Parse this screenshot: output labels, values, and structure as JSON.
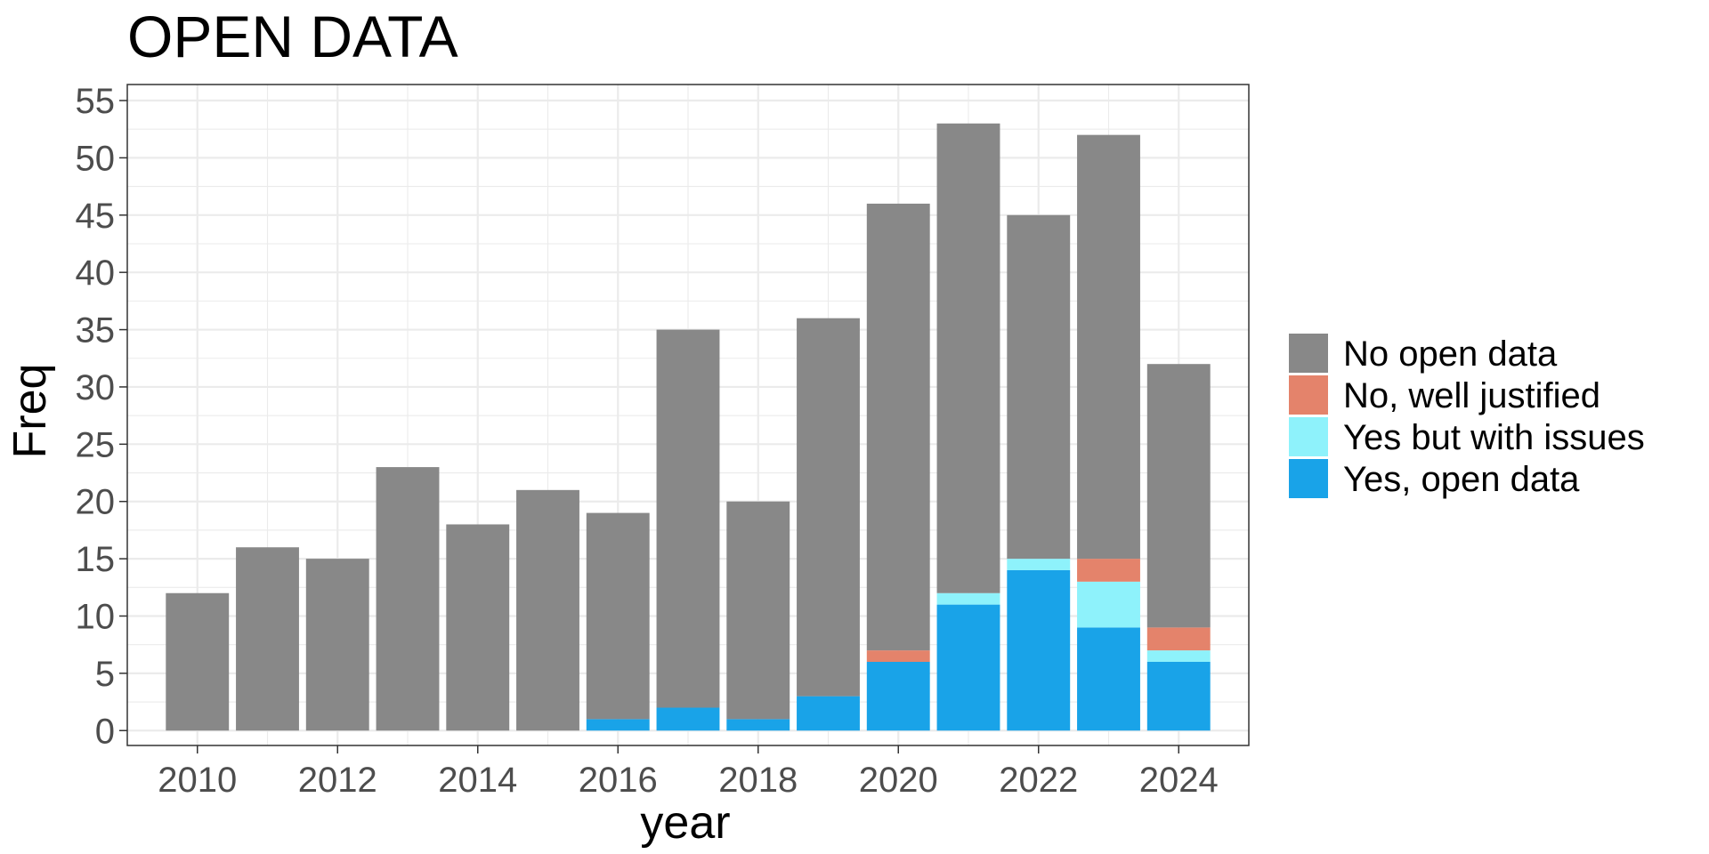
{
  "chart_data": {
    "type": "bar",
    "stacked": true,
    "title": "OPEN DATA",
    "xlabel": "year",
    "ylabel": "Freq",
    "x": [
      2010,
      2011,
      2012,
      2013,
      2014,
      2015,
      2016,
      2017,
      2018,
      2019,
      2020,
      2021,
      2022,
      2023,
      2024
    ],
    "xticks": [
      "2010",
      "2012",
      "2014",
      "2016",
      "2018",
      "2020",
      "2022",
      "2024"
    ],
    "yticks": [
      "0",
      "5",
      "10",
      "15",
      "20",
      "25",
      "30",
      "35",
      "40",
      "45",
      "50",
      "55"
    ],
    "ylim": [
      0,
      55
    ],
    "xlim": [
      2009,
      2025
    ],
    "grid": true,
    "legend_position": "right",
    "series": [
      {
        "name": "Yes, open data",
        "color": "#19A3E8",
        "values": [
          0,
          0,
          0,
          0,
          0,
          0,
          1,
          2,
          1,
          3,
          6,
          11,
          14,
          9,
          6
        ]
      },
      {
        "name": "Yes but with issues",
        "color": "#8EF2FB",
        "values": [
          0,
          0,
          0,
          0,
          0,
          0,
          0,
          0,
          0,
          0,
          0,
          1,
          1,
          4,
          1
        ]
      },
      {
        "name": "No, well justified",
        "color": "#E4836B",
        "values": [
          0,
          0,
          0,
          0,
          0,
          0,
          0,
          0,
          0,
          0,
          1,
          0,
          0,
          2,
          2
        ]
      },
      {
        "name": "No open data",
        "color": "#888888",
        "values": [
          12,
          16,
          15,
          23,
          18,
          21,
          18,
          33,
          19,
          33,
          39,
          41,
          30,
          37,
          23
        ]
      }
    ],
    "legend_order": [
      "No open data",
      "No, well justified",
      "Yes but with issues",
      "Yes, open data"
    ]
  }
}
